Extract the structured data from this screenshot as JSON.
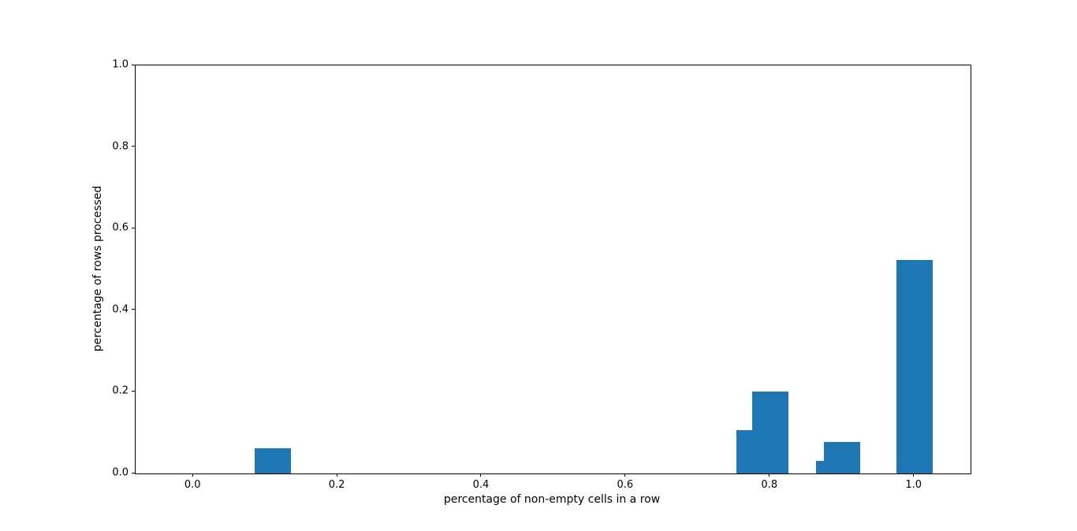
{
  "chart_data": {
    "type": "bar",
    "title": "",
    "xlabel": "percentage of non-empty cells in a row",
    "ylabel": "percentage of rows processed",
    "bar_color": "#1f77b4",
    "bar_width": 0.05,
    "x": [
      0.11,
      0.778,
      0.8,
      0.889,
      0.9,
      1.0
    ],
    "values": [
      0.061,
      0.107,
      0.201,
      0.031,
      0.078,
      0.524
    ],
    "xlim": [
      -0.08,
      1.078
    ],
    "ylim": [
      0.0,
      1.0
    ],
    "xticks": [
      0.0,
      0.2,
      0.4,
      0.6,
      0.8,
      1.0
    ],
    "yticks": [
      0.0,
      0.2,
      0.4,
      0.6,
      0.8,
      1.0
    ],
    "tick_label_format": "one_decimal",
    "grid": false,
    "legend_position": "none"
  }
}
